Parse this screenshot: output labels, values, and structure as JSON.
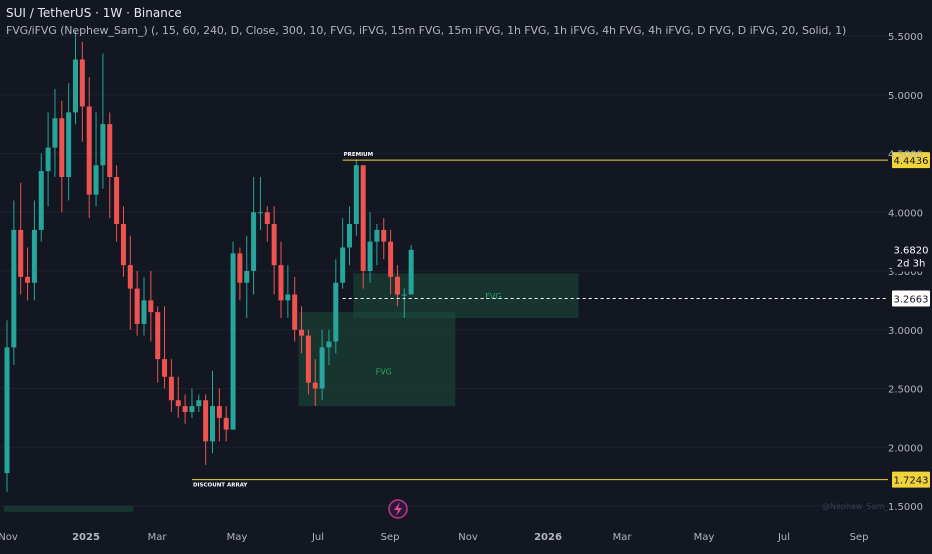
{
  "header": {
    "title": "SUI / TetherUS · 1W · Binance",
    "indicator": "FVG/iFVG (Nephew_Sam_) (, 15, 60, 240, D, Close, 300, 10, FVG, iFVG, 15m FVG, 15m iFVG, 1h FVG, 1h iFVG, 4h FVG, 4h iFVG, D FVG, D iFVG, 20, Solid, 1)"
  },
  "colors": {
    "background": "#131722",
    "up": "#26a69a",
    "down": "#ef5350",
    "level": "#f0d43a",
    "fvg_fill": "#1e4d3b",
    "fvg_text": "#2ea36a"
  },
  "icons": {
    "bolt": "lightning-icon"
  },
  "watermark": "@Nephew_Sam_",
  "chart_data": {
    "type": "candlestick",
    "ylim": [
      1.45,
      5.65
    ],
    "y_ticks": [
      "5.5000",
      "5.0000",
      "4.5000",
      "4.0000",
      "3.5000",
      "3.0000",
      "2.5000",
      "2.0000",
      "1.5000"
    ],
    "y_tick_values": [
      5.5,
      5.0,
      4.5,
      4.0,
      3.5,
      3.0,
      2.5,
      2.0,
      1.5
    ],
    "x_labels": [
      "Nov",
      "2025",
      "Mar",
      "May",
      "Jul",
      "Sep",
      "Nov",
      "2026",
      "Mar",
      "May",
      "Jul",
      "Sep"
    ],
    "candles": [
      [
        1.78,
        2.85,
        1.62,
        3.08
      ],
      [
        2.85,
        3.85,
        2.7,
        4.1
      ],
      [
        3.85,
        3.45,
        3.3,
        4.25
      ],
      [
        3.45,
        3.4,
        3.25,
        3.7
      ],
      [
        3.4,
        3.85,
        3.25,
        4.1
      ],
      [
        3.85,
        4.35,
        3.75,
        4.5
      ],
      [
        4.35,
        4.55,
        4.05,
        4.85
      ],
      [
        4.55,
        4.8,
        4.3,
        5.05
      ],
      [
        4.8,
        4.3,
        4.0,
        4.95
      ],
      [
        4.3,
        4.85,
        4.1,
        5.1
      ],
      [
        4.85,
        5.3,
        4.75,
        5.55
      ],
      [
        5.3,
        4.9,
        4.6,
        5.45
      ],
      [
        4.9,
        4.15,
        3.95,
        5.15
      ],
      [
        4.15,
        4.4,
        4.05,
        4.85
      ],
      [
        4.4,
        4.75,
        4.2,
        5.35
      ],
      [
        4.75,
        4.3,
        3.95,
        4.85
      ],
      [
        4.3,
        3.9,
        3.75,
        4.4
      ],
      [
        3.9,
        3.55,
        3.45,
        4.05
      ],
      [
        3.55,
        3.35,
        3.0,
        3.8
      ],
      [
        3.35,
        3.05,
        2.95,
        3.5
      ],
      [
        3.05,
        3.25,
        2.95,
        3.45
      ],
      [
        3.25,
        3.15,
        2.9,
        3.5
      ],
      [
        3.15,
        2.75,
        2.55,
        3.2
      ],
      [
        2.75,
        2.6,
        2.5,
        3.2
      ],
      [
        2.6,
        2.4,
        2.3,
        2.75
      ],
      [
        2.4,
        2.35,
        2.25,
        2.6
      ],
      [
        2.35,
        2.3,
        2.2,
        2.45
      ],
      [
        2.3,
        2.35,
        2.25,
        2.5
      ],
      [
        2.35,
        2.4,
        2.3,
        2.45
      ],
      [
        2.4,
        2.05,
        1.85,
        2.45
      ],
      [
        2.05,
        2.35,
        1.95,
        2.65
      ],
      [
        2.35,
        2.25,
        2.05,
        2.5
      ],
      [
        2.25,
        2.15,
        2.05,
        2.35
      ],
      [
        2.15,
        3.65,
        2.15,
        3.75
      ],
      [
        3.65,
        3.4,
        3.25,
        3.7
      ],
      [
        3.4,
        3.5,
        3.1,
        3.8
      ],
      [
        3.5,
        4.0,
        3.3,
        4.3
      ],
      [
        4.0,
        4.0,
        3.85,
        4.3
      ],
      [
        4.0,
        3.9,
        3.75,
        4.05
      ],
      [
        3.9,
        3.55,
        3.3,
        4.05
      ],
      [
        3.55,
        3.25,
        3.1,
        3.75
      ],
      [
        3.25,
        3.3,
        3.1,
        3.55
      ],
      [
        3.3,
        3.0,
        2.9,
        3.45
      ],
      [
        3.0,
        2.95,
        2.8,
        3.2
      ],
      [
        2.95,
        2.55,
        2.45,
        3.0
      ],
      [
        2.55,
        2.5,
        2.35,
        2.75
      ],
      [
        2.5,
        2.85,
        2.4,
        3.0
      ],
      [
        2.85,
        2.9,
        2.7,
        3.0
      ],
      [
        2.9,
        3.4,
        2.8,
        3.6
      ],
      [
        3.4,
        3.7,
        3.35,
        3.95
      ],
      [
        3.7,
        3.9,
        3.55,
        4.05
      ],
      [
        3.9,
        4.4,
        3.8,
        4.45
      ],
      [
        4.4,
        3.5,
        3.35,
        4.4
      ],
      [
        3.5,
        3.75,
        3.4,
        4.0
      ],
      [
        3.75,
        3.85,
        3.55,
        3.9
      ],
      [
        3.85,
        3.75,
        3.6,
        3.95
      ],
      [
        3.75,
        3.45,
        3.3,
        3.85
      ],
      [
        3.45,
        3.3,
        3.2,
        3.55
      ],
      [
        3.3,
        3.3,
        3.1,
        3.35
      ],
      [
        3.3,
        3.68,
        3.3,
        3.72
      ]
    ],
    "fvg_zones": [
      {
        "label": "FVG",
        "x0": 43,
        "x1": 65,
        "y0": 2.35,
        "y1": 3.15
      },
      {
        "label": "FVG",
        "x0": 51,
        "x1": 83,
        "y0": 3.1,
        "y1": 3.48
      },
      {
        "label": "",
        "x0": 0,
        "x1": 18,
        "y0": 1.45,
        "y1": 1.5
      }
    ],
    "levels": [
      {
        "label": "PREMIUM",
        "price": "4.4436",
        "value": 4.4436
      },
      {
        "label": "DISCOUNT ARRAY",
        "price": "1.7243",
        "value": 1.7243
      }
    ],
    "dashed_level": {
      "price": "3.2663",
      "value": 3.2663
    },
    "current_price": {
      "price": "3.6820",
      "countdown": "2d 3h",
      "value": 3.682
    }
  }
}
